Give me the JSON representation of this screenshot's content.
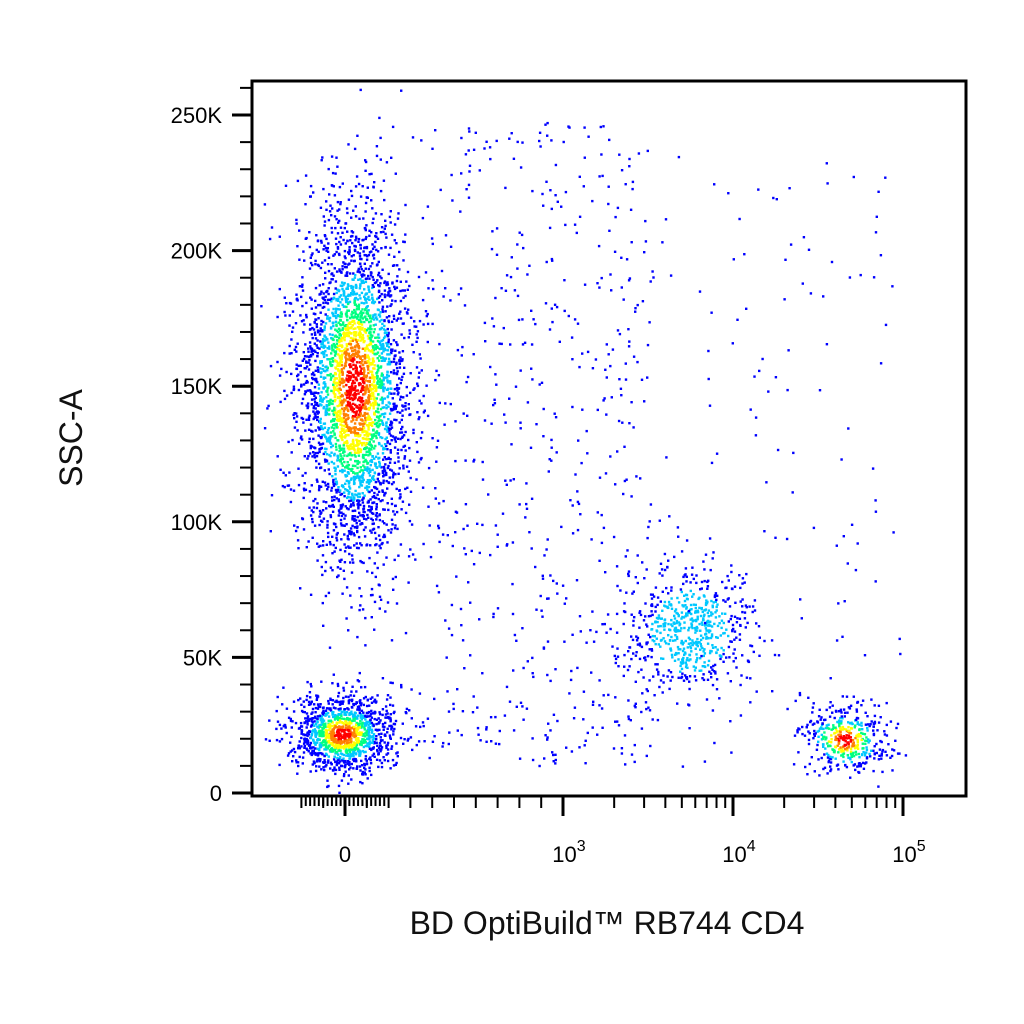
{
  "chart_data": {
    "type": "scatter",
    "style": "density-colored flow cytometry dot plot",
    "xlabel": "BD OptiBuild™ RB744 CD4",
    "ylabel": "SSC-A",
    "x_scale": "biexponential",
    "ylim": [
      0,
      262144
    ],
    "y_ticks": [
      {
        "value": 0,
        "label": "0"
      },
      {
        "value": 50000,
        "label": "50K"
      },
      {
        "value": 100000,
        "label": "100K"
      },
      {
        "value": 150000,
        "label": "150K"
      },
      {
        "value": 200000,
        "label": "200K"
      },
      {
        "value": 250000,
        "label": "250K"
      }
    ],
    "x_ticks": [
      {
        "value": 0,
        "base": "0",
        "exp": ""
      },
      {
        "value": 1000,
        "base": "10",
        "exp": "3"
      },
      {
        "value": 10000,
        "base": "10",
        "exp": "4"
      },
      {
        "value": 100000,
        "base": "10",
        "exp": "5"
      }
    ],
    "density_colors": [
      "#0000ff",
      "#00c8ff",
      "#00ff80",
      "#ffff00",
      "#ff8000",
      "#ff0000"
    ],
    "populations": [
      {
        "center_x": 40,
        "center_y": 150000,
        "spread_x": 40,
        "spread_y": 32000,
        "relative_count": 0.48
      },
      {
        "center_x": -15,
        "center_y": 22000,
        "spread_x": 30,
        "spread_y": 7000,
        "relative_count": 0.18
      },
      {
        "center_x": 5500,
        "center_y": 60000,
        "spread_x": 2500,
        "spread_y": 12000,
        "relative_count": 0.09
      },
      {
        "center_x": 45000,
        "center_y": 20000,
        "spread_x": 12000,
        "spread_y": 6000,
        "relative_count": 0.06
      }
    ],
    "grid": false,
    "legend": "none"
  }
}
